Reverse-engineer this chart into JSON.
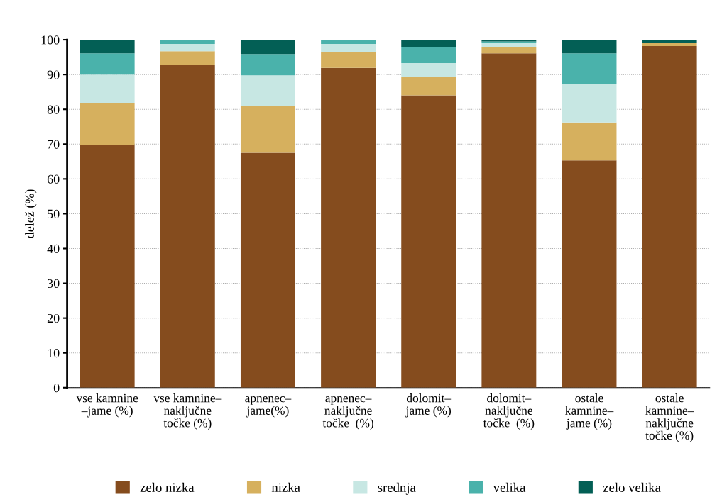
{
  "chart_data": {
    "type": "bar",
    "stacked": true,
    "ylabel": "delež (%)",
    "categories": [
      "vse kamnine\n–jame (%)",
      "vse kamnine–\nnaključne\ntočke (%)",
      "apnenec–\njame(%)",
      "apnenec–\nnaključne\ntočke  (%)",
      "dolomit–\njame (%)",
      "dolomit–\nnaključne\ntočke  (%)",
      "ostale\nkamnine–\njame (%)",
      "ostale\nkamnine–\nnaključne\ntočke (%)"
    ],
    "series": [
      {
        "name": "zelo nizka",
        "color": "#854c1e",
        "values": [
          69.7,
          92.7,
          67.5,
          91.9,
          84.0,
          96.1,
          65.3,
          98.2
        ]
      },
      {
        "name": "nizka",
        "color": "#d6b05e",
        "values": [
          12.2,
          4.0,
          13.4,
          4.6,
          5.2,
          1.9,
          10.9,
          1.0
        ]
      },
      {
        "name": "srednja",
        "color": "#c7e7e3",
        "values": [
          8.1,
          2.1,
          8.9,
          2.3,
          4.1,
          1.2,
          11.0,
          0
        ]
      },
      {
        "name": "velika",
        "color": "#4ab2ab",
        "values": [
          6.1,
          1.0,
          6.1,
          1.0,
          4.7,
          0.3,
          8.9,
          0
        ]
      },
      {
        "name": "zelo velika",
        "color": "#035f55",
        "values": [
          3.9,
          0.2,
          4.1,
          0.2,
          2.0,
          0.5,
          3.9,
          0.8
        ]
      }
    ],
    "ylim": [
      0,
      100
    ],
    "yticks": [
      0,
      10,
      20,
      30,
      40,
      50,
      60,
      70,
      80,
      90,
      100
    ],
    "grid": "y",
    "legend": "bottom"
  }
}
